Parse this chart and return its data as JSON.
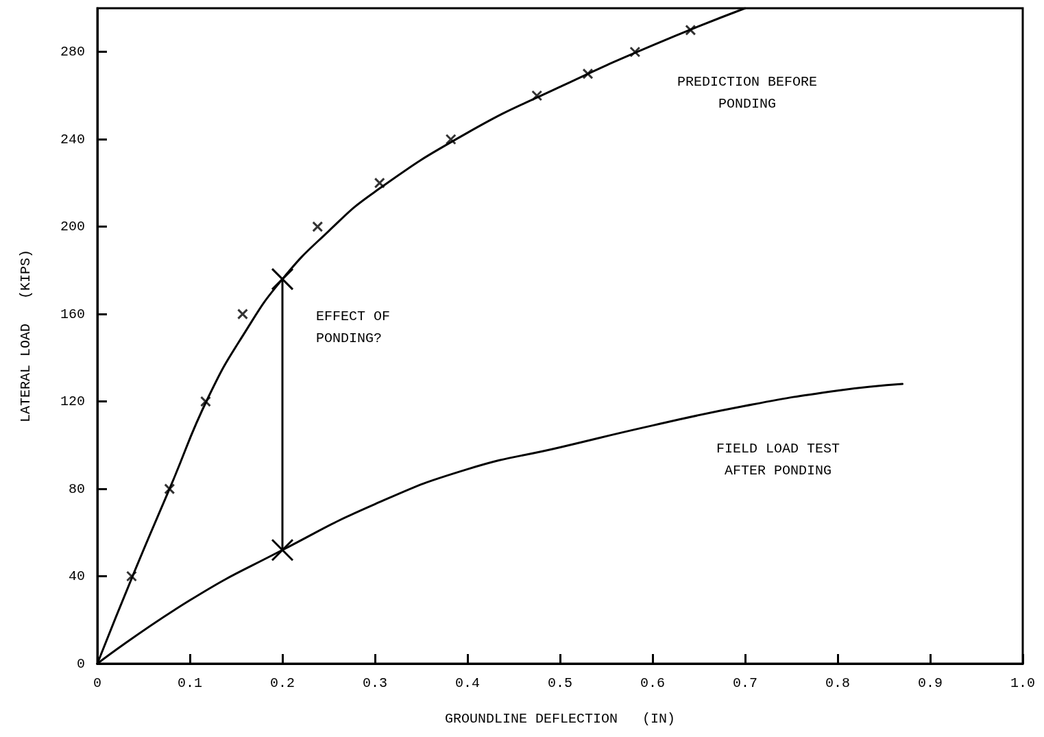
{
  "chart_data": {
    "type": "line",
    "xlabel": "GROUNDLINE DEFLECTION   (IN)",
    "ylabel": "LATERAL LOAD   (KIPS)",
    "xlim": [
      0,
      1.0
    ],
    "xticks": [
      0,
      0.1,
      0.2,
      0.3,
      0.4,
      0.5,
      0.6,
      0.7,
      0.8,
      0.9,
      {
        "value": 1.0,
        "label": "1.0"
      }
    ],
    "ylim": [
      0,
      300
    ],
    "yticks": [
      0,
      40,
      80,
      120,
      160,
      200,
      240,
      280
    ],
    "grid": false,
    "line_style": "solid",
    "series": [
      {
        "color": "#000000",
        "marker": "none",
        "x": [
          0,
          0.04,
          0.08,
          0.12,
          0.16,
          0.2,
          0.25,
          0.3,
          0.4,
          0.5,
          0.6,
          0.7
        ],
        "values": [
          0,
          42,
          82,
          122,
          152,
          176,
          198,
          216,
          243,
          264,
          283,
          300
        ]
      },
      {
        "type": "scatter",
        "color": "#000000",
        "marker": "cross",
        "x": [
          0.037,
          0.078,
          0.117,
          0.157,
          0.238,
          0.305,
          0.382,
          0.475,
          0.53,
          0.581,
          0.641
        ],
        "values": [
          40,
          80,
          120,
          160,
          200,
          220,
          240,
          260,
          270,
          280,
          290
        ]
      },
      {
        "color": "#000000",
        "marker": "none",
        "x": [
          0,
          0.1,
          0.2,
          0.3,
          0.4,
          0.5,
          0.6,
          0.7,
          0.8,
          0.87
        ],
        "values": [
          0,
          29,
          52,
          73,
          89,
          99,
          109,
          118,
          125,
          128
        ]
      },
      {
        "color": "#000000",
        "marker": "cross",
        "x": [
          0.2,
          0.2
        ],
        "values": [
          52,
          176
        ]
      }
    ],
    "annotations": [
      "PREDICTION BEFORE\nPONDING",
      "EFFECT OF\nPONDING?",
      "FIELD LOAD TEST\nAFTER PONDING"
    ]
  }
}
